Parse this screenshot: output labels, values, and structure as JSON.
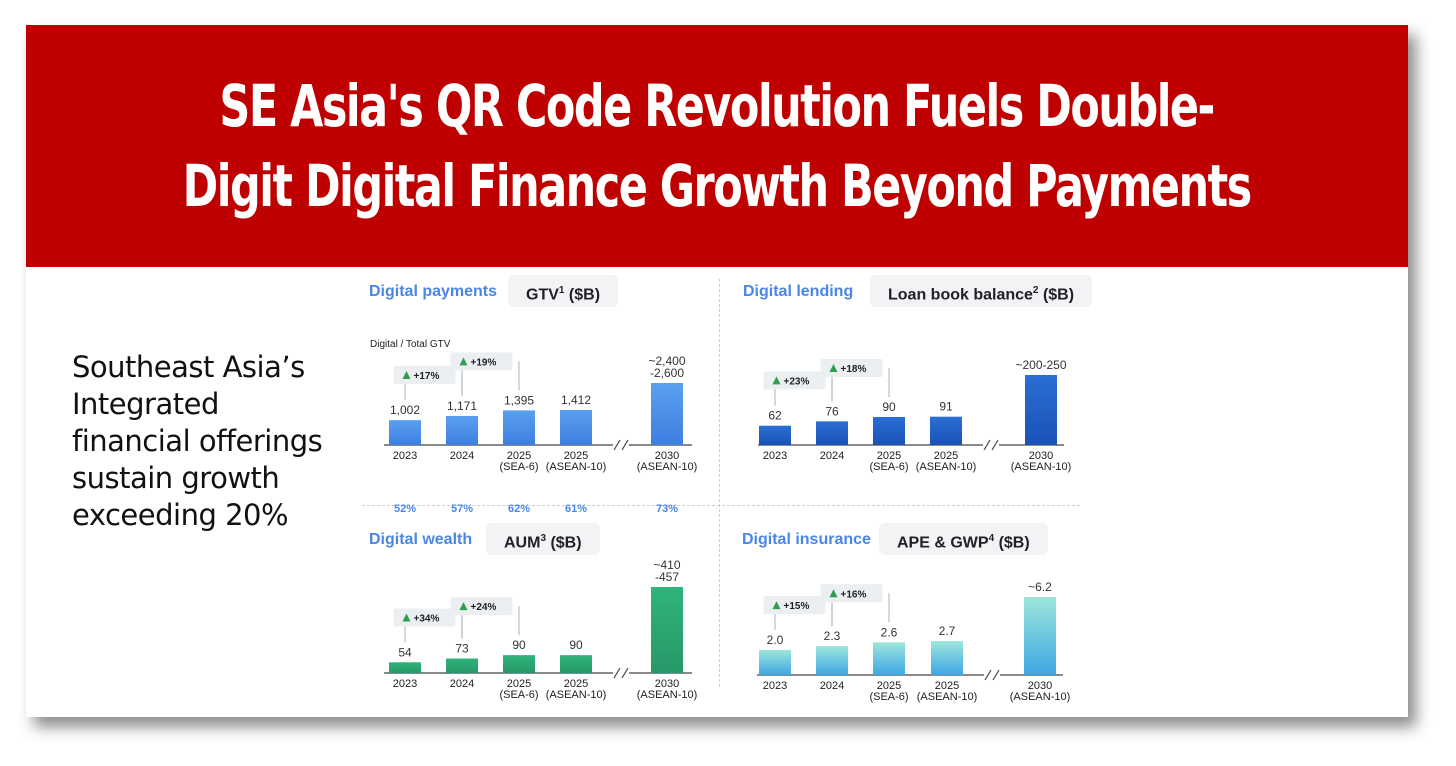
{
  "header": {
    "title_line1": "SE Asia's QR Code Revolution Fuels Double-",
    "title_line2": "Digit Digital Finance Growth Beyond Payments"
  },
  "sidebar": {
    "text": "Southeast Asia’s Integrated financial offerings sustain growth exceeding 20%"
  },
  "colors": {
    "banner": "#bf0000",
    "payments": "#4a8fe8",
    "lending": "#1b5fc7",
    "wealth": "#2fa36f",
    "insurance": "#7fd3d6"
  },
  "chart_data": [
    {
      "type": "bar",
      "title": "Digital payments",
      "metric": "GTV",
      "metric_sup": "1",
      "metric_unit": "($B)",
      "subnote": "Digital / Total GTV",
      "categories": [
        [
          "2023"
        ],
        [
          "2024"
        ],
        [
          "2025",
          "(SEA-6)"
        ],
        [
          "2025",
          "(ASEAN-10)"
        ],
        [
          "2030",
          "(ASEAN-10)"
        ]
      ],
      "values": [
        1002,
        1171,
        1395,
        1412,
        2500
      ],
      "value_labels": [
        [
          "1,002"
        ],
        [
          "1,171"
        ],
        [
          "1,395"
        ],
        [
          "1,412"
        ],
        [
          "~2,400",
          "-2,600"
        ]
      ],
      "growth": [
        {
          "after": 0,
          "label": "+17%"
        },
        {
          "after": 1,
          "label": "+19%"
        }
      ],
      "shares": [
        "52%",
        "57%",
        "62%",
        "61%",
        "73%"
      ],
      "axis_break_after": 3,
      "color": "payments"
    },
    {
      "type": "bar",
      "title": "Digital lending",
      "metric": "Loan book balance",
      "metric_sup": "2",
      "metric_unit": "($B)",
      "categories": [
        [
          "2023"
        ],
        [
          "2024"
        ],
        [
          "2025",
          "(SEA-6)"
        ],
        [
          "2025",
          "(ASEAN-10)"
        ],
        [
          "2030",
          "(ASEAN-10)"
        ]
      ],
      "values": [
        62,
        76,
        90,
        91,
        225
      ],
      "value_labels": [
        [
          "62"
        ],
        [
          "76"
        ],
        [
          "90"
        ],
        [
          "91"
        ],
        [
          "~200-250"
        ]
      ],
      "growth": [
        {
          "after": 0,
          "label": "+23%"
        },
        {
          "after": 1,
          "label": "+18%"
        }
      ],
      "axis_break_after": 3,
      "color": "lending"
    },
    {
      "type": "bar",
      "title": "Digital wealth",
      "metric": "AUM",
      "metric_sup": "3",
      "metric_unit": "($B)",
      "categories": [
        [
          "2023"
        ],
        [
          "2024"
        ],
        [
          "2025",
          "(SEA-6)"
        ],
        [
          "2025",
          "(ASEAN-10)"
        ],
        [
          "2030",
          "(ASEAN-10)"
        ]
      ],
      "values": [
        54,
        73,
        90,
        90,
        433
      ],
      "value_labels": [
        [
          "54"
        ],
        [
          "73"
        ],
        [
          "90"
        ],
        [
          "90"
        ],
        [
          "~410",
          "-457"
        ]
      ],
      "growth": [
        {
          "after": 0,
          "label": "+34%"
        },
        {
          "after": 1,
          "label": "+24%"
        }
      ],
      "axis_break_after": 3,
      "color": "wealth"
    },
    {
      "type": "bar",
      "title": "Digital insurance",
      "metric": "APE & GWP",
      "metric_sup": "4",
      "metric_unit": "($B)",
      "categories": [
        [
          "2023"
        ],
        [
          "2024"
        ],
        [
          "2025",
          "(SEA-6)"
        ],
        [
          "2025",
          "(ASEAN-10)"
        ],
        [
          "2030",
          "(ASEAN-10)"
        ]
      ],
      "values": [
        2.0,
        2.3,
        2.6,
        2.7,
        6.2
      ],
      "value_labels": [
        [
          "2.0"
        ],
        [
          "2.3"
        ],
        [
          "2.6"
        ],
        [
          "2.7"
        ],
        [
          "~6.2"
        ]
      ],
      "growth": [
        {
          "after": 0,
          "label": "+15%"
        },
        {
          "after": 1,
          "label": "+16%"
        }
      ],
      "axis_break_after": 3,
      "color": "insurance"
    }
  ]
}
